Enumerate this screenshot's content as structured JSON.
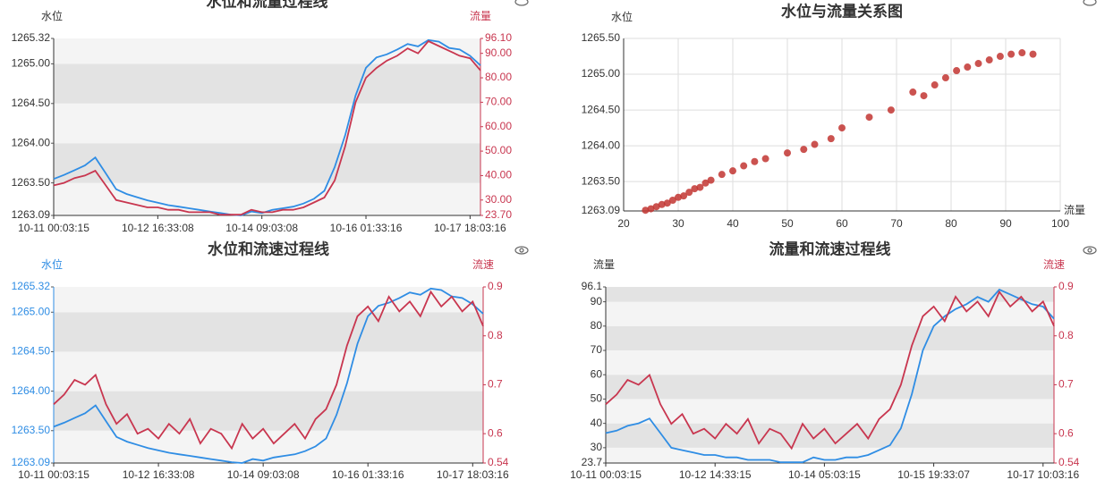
{
  "chart_data": [
    {
      "type": "line",
      "title": "水位和流量过程线",
      "ylabel": "水位",
      "y2label": "流量",
      "categories": [
        "10-11 00:03:15",
        null,
        null,
        null,
        null,
        null,
        null,
        null,
        null,
        null,
        "10-12 16:33:08",
        null,
        null,
        null,
        null,
        null,
        null,
        null,
        null,
        null,
        "10-14 09:03:08",
        null,
        null,
        null,
        null,
        null,
        null,
        null,
        null,
        null,
        "10-16 01:33:16",
        null,
        null,
        null,
        null,
        null,
        null,
        null,
        null,
        null,
        "10-17 18:03:16",
        null
      ],
      "ylim": [
        1263.09,
        1265.32
      ],
      "yticks": [
        1263.09,
        {
          "value": 1263.5,
          "label": "1263.50"
        },
        {
          "value": 1264,
          "label": "1264.00"
        },
        {
          "value": 1264.5,
          "label": "1264.50"
        },
        {
          "value": 1265,
          "label": "1265.00"
        },
        1265.32
      ],
      "y2lim": [
        23.7,
        96.1
      ],
      "y2ticks": [
        {
          "value": 23.7,
          "label": "23.70"
        },
        {
          "value": 30,
          "label": "30.00"
        },
        {
          "value": 40,
          "label": "40.00"
        },
        {
          "value": 50,
          "label": "50.00"
        },
        {
          "value": 60,
          "label": "60.00"
        },
        {
          "value": 70,
          "label": "70.00"
        },
        {
          "value": 80,
          "label": "80.00"
        },
        {
          "value": 90,
          "label": "90.00"
        },
        {
          "value": 96.1,
          "label": "96.10"
        }
      ],
      "series": [
        {
          "color": "#2f8de4",
          "values": [
            1263.55,
            1263.6,
            1263.66,
            1263.72,
            1263.82,
            1263.62,
            1263.42,
            1263.36,
            1263.32,
            1263.28,
            1263.25,
            1263.22,
            1263.2,
            1263.18,
            1263.16,
            1263.14,
            1263.12,
            1263.1,
            1263.09,
            1263.14,
            1263.12,
            1263.16,
            1263.18,
            1263.2,
            1263.24,
            1263.3,
            1263.4,
            1263.7,
            1264.1,
            1264.6,
            1264.95,
            1265.08,
            1265.12,
            1265.18,
            1265.25,
            1265.22,
            1265.3,
            1265.28,
            1265.2,
            1265.18,
            1265.1,
            1264.98
          ]
        },
        {
          "color": "#c8364f",
          "axis": "y2",
          "values": [
            36,
            37,
            39,
            40,
            42,
            36,
            30,
            29,
            28,
            27,
            27,
            26,
            26,
            25,
            25,
            25,
            24,
            24,
            24,
            26,
            25,
            25,
            26,
            26,
            27,
            29,
            31,
            38,
            52,
            70,
            80,
            84,
            87,
            89,
            92,
            90,
            95,
            93,
            91,
            89,
            88,
            83
          ]
        }
      ]
    },
    {
      "type": "scatter",
      "title": "水位与流量关系图",
      "ylabel": "水位",
      "xlabel": "流量",
      "color": "#c23531",
      "xlim": [
        20,
        100
      ],
      "xticks": [
        20,
        30,
        40,
        50,
        60,
        70,
        80,
        90,
        100
      ],
      "ylim": [
        1263.09,
        1265.5
      ],
      "yticks": [
        1263.09,
        {
          "value": 1263.5,
          "label": "1263.50"
        },
        {
          "value": 1264,
          "label": "1264.00"
        },
        {
          "value": 1264.5,
          "label": "1264.50"
        },
        {
          "value": 1265,
          "label": "1265.00"
        },
        {
          "value": 1265.5,
          "label": "1265.50"
        }
      ],
      "x": [
        24,
        25,
        26,
        27,
        28,
        29,
        30,
        31,
        32,
        33,
        34,
        35,
        36,
        38,
        40,
        42,
        44,
        46,
        50,
        53,
        55,
        58,
        60,
        65,
        69,
        73,
        75,
        77,
        79,
        81,
        83,
        85,
        87,
        89,
        91,
        93,
        95
      ],
      "values": [
        1263.1,
        1263.12,
        1263.15,
        1263.18,
        1263.2,
        1263.24,
        1263.28,
        1263.3,
        1263.35,
        1263.4,
        1263.42,
        1263.48,
        1263.52,
        1263.6,
        1263.65,
        1263.72,
        1263.78,
        1263.82,
        1263.9,
        1263.95,
        1264.02,
        1264.1,
        1264.25,
        1264.4,
        1264.5,
        1264.75,
        1264.7,
        1264.85,
        1264.95,
        1265.05,
        1265.1,
        1265.15,
        1265.2,
        1265.25,
        1265.28,
        1265.3,
        1265.28
      ]
    },
    {
      "type": "line",
      "title": "水位和流速过程线",
      "ylabel": "水位",
      "y2label": "流速",
      "categories": [
        "10-11 00:03:15",
        null,
        null,
        null,
        null,
        null,
        null,
        null,
        null,
        null,
        "10-12 16:33:08",
        null,
        null,
        null,
        null,
        null,
        null,
        null,
        null,
        null,
        "10-14 09:03:08",
        null,
        null,
        null,
        null,
        null,
        null,
        null,
        null,
        null,
        "10-16 01:33:16",
        null,
        null,
        null,
        null,
        null,
        null,
        null,
        null,
        null,
        "10-17 18:03:16",
        null
      ],
      "ylim": [
        1263.09,
        1265.32
      ],
      "yticks": [
        1263.09,
        {
          "value": 1263.5,
          "label": "1263.50"
        },
        {
          "value": 1264,
          "label": "1264.00"
        },
        {
          "value": 1264.5,
          "label": "1264.50"
        },
        {
          "value": 1265,
          "label": "1265.00"
        },
        1265.32
      ],
      "y2lim": [
        0.54,
        0.9
      ],
      "y2ticks": [
        0.54,
        0.6,
        0.7,
        0.8,
        0.9
      ],
      "series": [
        {
          "color": "#2f8de4",
          "values": [
            1263.55,
            1263.6,
            1263.66,
            1263.72,
            1263.82,
            1263.62,
            1263.42,
            1263.36,
            1263.32,
            1263.28,
            1263.25,
            1263.22,
            1263.2,
            1263.18,
            1263.16,
            1263.14,
            1263.12,
            1263.1,
            1263.09,
            1263.14,
            1263.12,
            1263.16,
            1263.18,
            1263.2,
            1263.24,
            1263.3,
            1263.4,
            1263.7,
            1264.1,
            1264.6,
            1264.95,
            1265.08,
            1265.12,
            1265.18,
            1265.25,
            1265.22,
            1265.3,
            1265.28,
            1265.2,
            1265.18,
            1265.1,
            1264.98
          ]
        },
        {
          "color": "#c8364f",
          "axis": "y2",
          "values": [
            0.66,
            0.68,
            0.71,
            0.7,
            0.72,
            0.66,
            0.62,
            0.64,
            0.6,
            0.61,
            0.59,
            0.62,
            0.6,
            0.63,
            0.58,
            0.61,
            0.6,
            0.57,
            0.62,
            0.59,
            0.61,
            0.58,
            0.6,
            0.62,
            0.59,
            0.63,
            0.65,
            0.7,
            0.78,
            0.84,
            0.86,
            0.83,
            0.88,
            0.85,
            0.87,
            0.84,
            0.89,
            0.86,
            0.88,
            0.85,
            0.87,
            0.82
          ]
        }
      ]
    },
    {
      "type": "line",
      "title": "流量和流速过程线",
      "ylabel": "流量",
      "y2label": "流速",
      "categories": [
        "10-11 00:03:15",
        null,
        null,
        null,
        null,
        null,
        null,
        null,
        null,
        null,
        "10-12 14:33:15",
        null,
        null,
        null,
        null,
        null,
        null,
        null,
        null,
        null,
        "10-14 05:03:15",
        null,
        null,
        null,
        null,
        null,
        null,
        null,
        null,
        null,
        "10-15 19:33:07",
        null,
        null,
        null,
        null,
        null,
        null,
        null,
        null,
        null,
        "10-17 10:03:16",
        null
      ],
      "ylim": [
        23.7,
        96.1
      ],
      "yticks": [
        23.7,
        30,
        40,
        50,
        60,
        70,
        80,
        90,
        96.1
      ],
      "y2lim": [
        0.54,
        0.9
      ],
      "y2ticks": [
        0.54,
        0.6,
        0.7,
        0.8,
        0.9
      ],
      "series": [
        {
          "color": "#2f8de4",
          "values": [
            36,
            37,
            39,
            40,
            42,
            36,
            30,
            29,
            28,
            27,
            27,
            26,
            26,
            25,
            25,
            25,
            24,
            24,
            24,
            26,
            25,
            25,
            26,
            26,
            27,
            29,
            31,
            38,
            52,
            70,
            80,
            84,
            87,
            89,
            92,
            90,
            95,
            93,
            91,
            89,
            88,
            83
          ]
        },
        {
          "color": "#c8364f",
          "axis": "y2",
          "values": [
            0.66,
            0.68,
            0.71,
            0.7,
            0.72,
            0.66,
            0.62,
            0.64,
            0.6,
            0.61,
            0.59,
            0.62,
            0.6,
            0.63,
            0.58,
            0.61,
            0.6,
            0.57,
            0.62,
            0.59,
            0.61,
            0.58,
            0.6,
            0.62,
            0.59,
            0.63,
            0.65,
            0.7,
            0.78,
            0.84,
            0.86,
            0.83,
            0.88,
            0.85,
            0.87,
            0.84,
            0.89,
            0.86,
            0.88,
            0.85,
            0.87,
            0.82
          ]
        }
      ]
    }
  ]
}
